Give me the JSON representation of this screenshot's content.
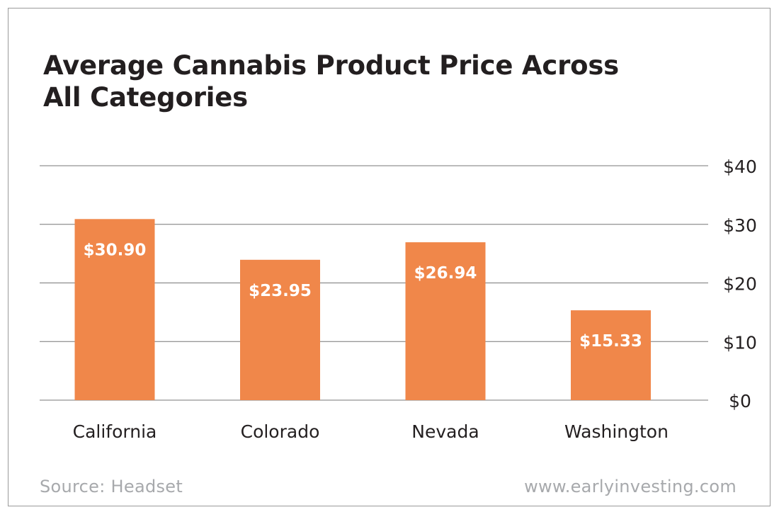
{
  "page": {
    "source": "Source: Headset",
    "website": "www.earlyinvesting.com"
  },
  "chart_data": {
    "type": "bar",
    "title_lines": [
      "Average Cannabis Product Price Across",
      "All Categories"
    ],
    "title": "Average Cannabis Product Price Across All Categories",
    "categories": [
      "California",
      "Colorado",
      "Nevada",
      "Washington"
    ],
    "values": [
      30.9,
      23.95,
      26.94,
      15.33
    ],
    "data_labels": [
      "$30.90",
      "$23.95",
      "$26.94",
      "$15.33"
    ],
    "ylim": [
      0,
      40
    ],
    "y_ticks": [
      0,
      10,
      20,
      30,
      40
    ],
    "y_tick_labels": [
      "$0",
      "$10",
      "$20",
      "$30",
      "$40"
    ],
    "y_axis_position": "right",
    "grid": true,
    "legend": "none",
    "xlabel": "",
    "ylabel": "",
    "bar_color": "#f0874a",
    "label_color": "#ffffff",
    "grid_color": "#777777",
    "text_color": "#231f20"
  }
}
